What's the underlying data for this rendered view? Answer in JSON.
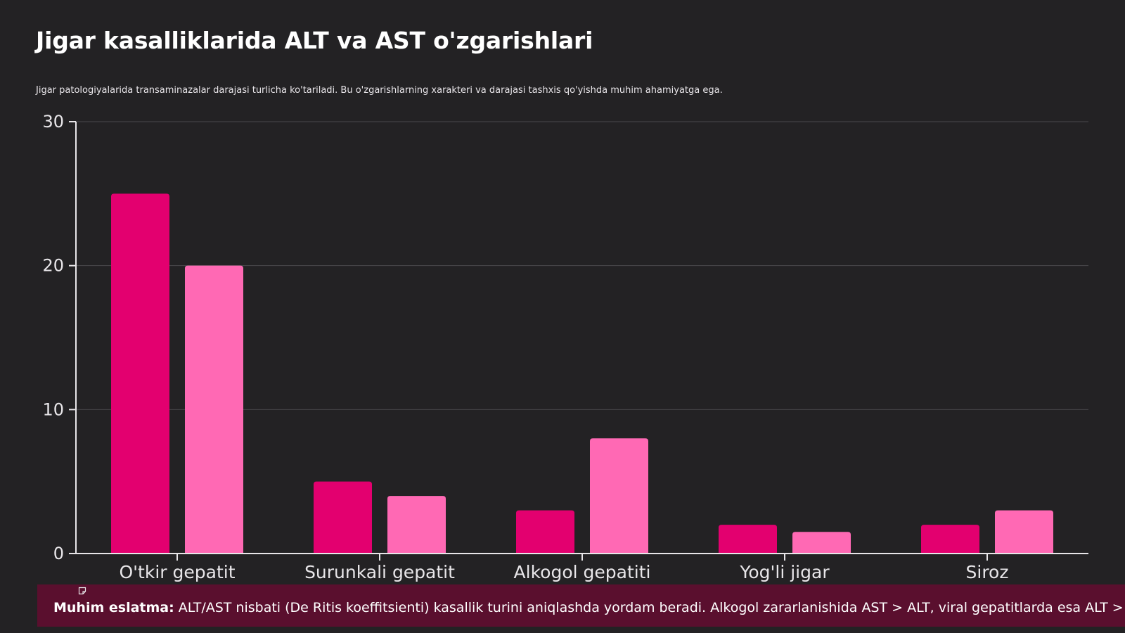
{
  "title": "Jigar kasalliklarida ALT va AST o'zgarishlari",
  "subtitle": "Jigar patologiyalarida transaminazalar darajasi turlicha ko'tariladi. Bu o'zgarishlarning xarakteri va darajasi tashxis qo'yishda muhim ahamiyatga ega.",
  "note": {
    "label": "Muhim eslatma:",
    "text": " ALT/AST nisbati (De Ritis koeffitsienti) kasallik turini aniqlashda yordam beradi. Alkogol zararlanishida AST > ALT, viral gepatitlarda esa ALT > AST kuzatiladi.",
    "icon": "note-icon"
  },
  "colors": {
    "background": "#232224",
    "alt": "#e3006f",
    "ast": "#ff69b4",
    "note_bg": "#5a0f2e",
    "grid": "#4a484b",
    "axis": "#e8e6e9"
  },
  "chart_data": {
    "type": "bar",
    "title": "Jigar kasalliklarida ALT va AST o'zgarishlari",
    "categories": [
      "O'tkir gepatit",
      "Surunkali gepatit",
      "Alkogol gepatiti",
      "Yog'li jigar",
      "Siroz"
    ],
    "series": [
      {
        "values": [
          25,
          5,
          3,
          2,
          2
        ],
        "color": "#e3006f"
      },
      {
        "values": [
          20,
          4,
          8,
          1.5,
          3
        ],
        "color": "#ff69b4"
      }
    ],
    "yticks": [
      0,
      10,
      20,
      30
    ],
    "ylim": [
      0,
      30
    ],
    "grid": true
  }
}
